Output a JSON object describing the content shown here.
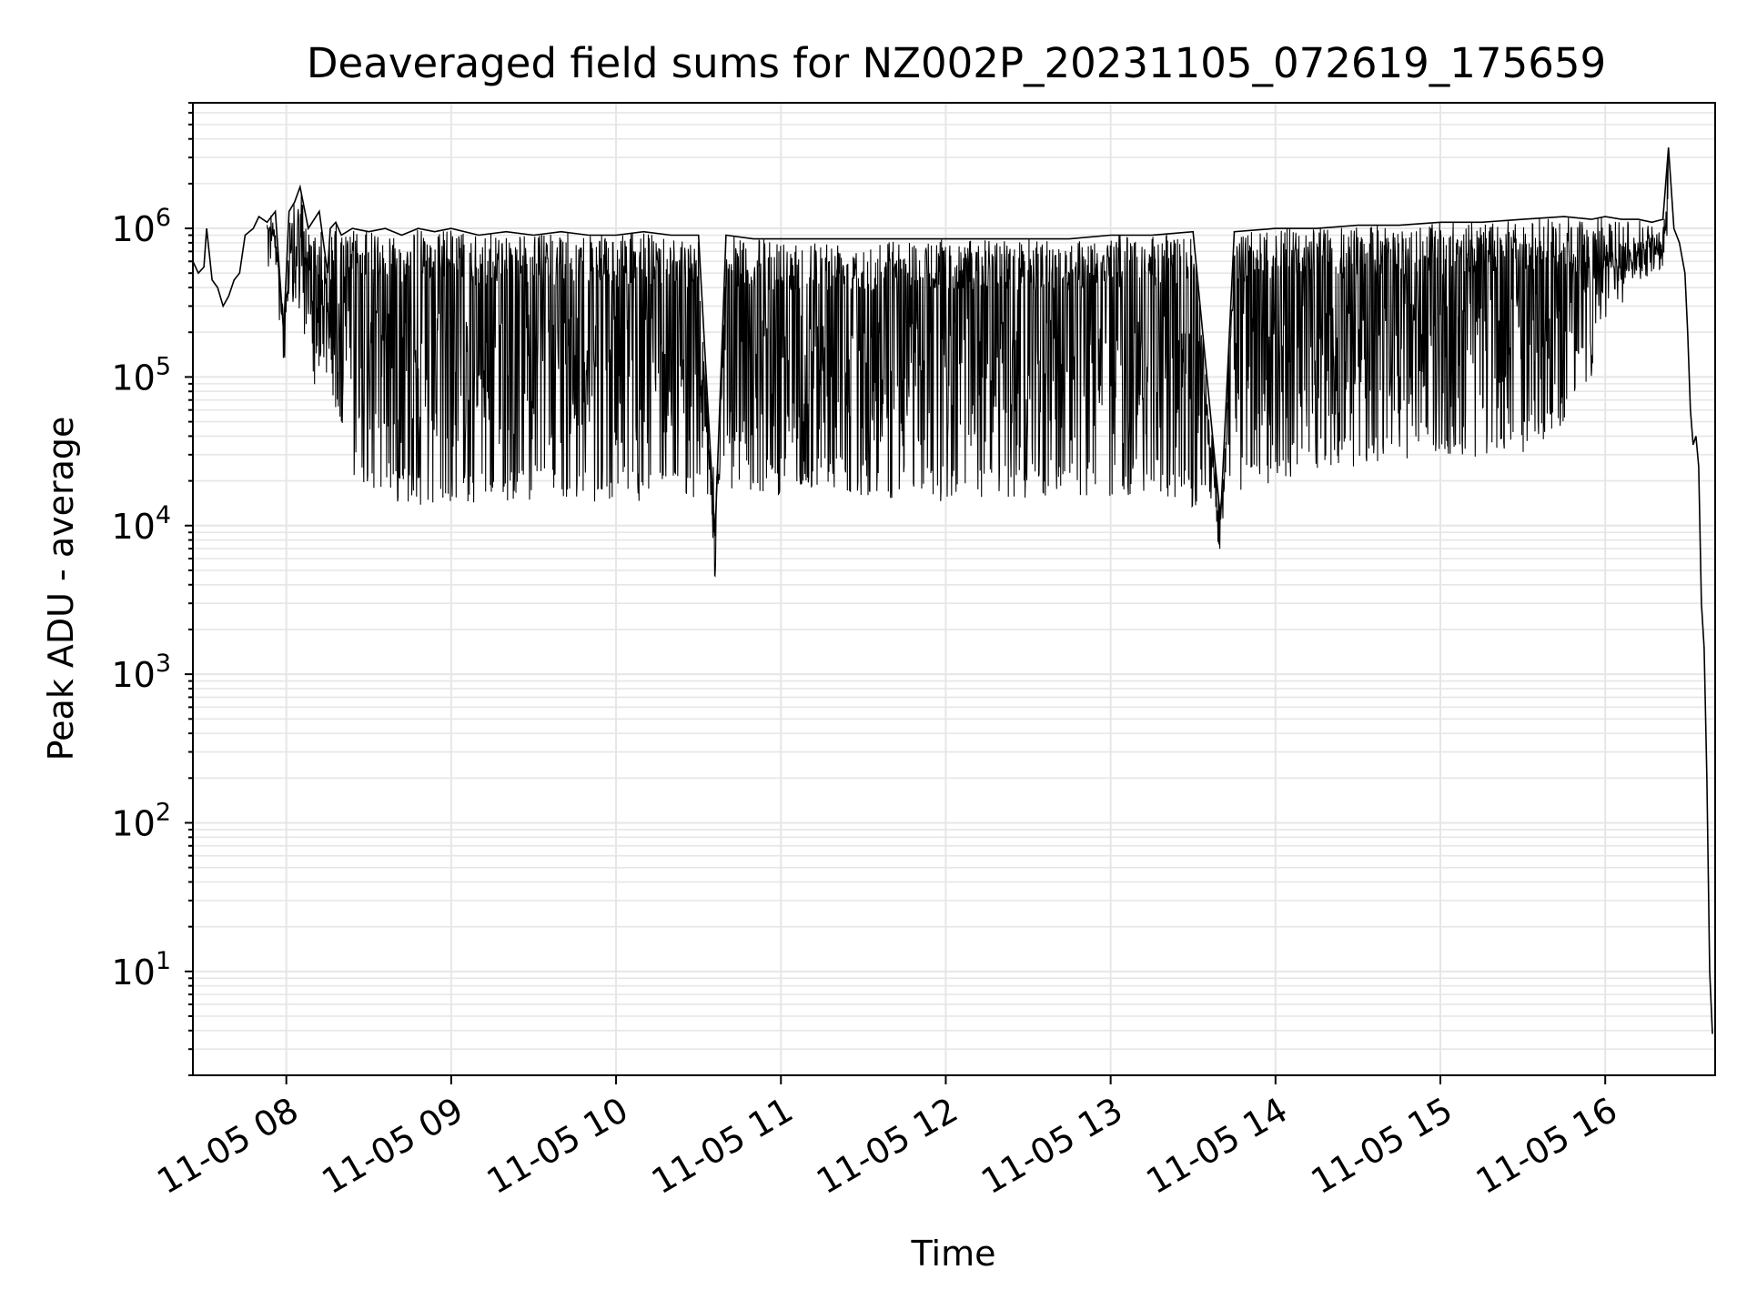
{
  "chart_data": {
    "type": "line",
    "title": "Deaveraged field sums for NZ002P_20231105_072619_175659",
    "xlabel": "Time",
    "ylabel": "Peak ADU - average",
    "yscale": "log",
    "grid": true,
    "line_color": "#000000",
    "grid_color": "#e6e6e6",
    "x_tick_labels": [
      "11-05 08",
      "11-05 09",
      "11-05 10",
      "11-05 11",
      "11-05 12",
      "11-05 13",
      "11-05 14",
      "11-05 15",
      "11-05 16"
    ],
    "y_tick_labels": [
      {
        "base": "10",
        "exp": "1"
      },
      {
        "base": "10",
        "exp": "2"
      },
      {
        "base": "10",
        "exp": "3"
      },
      {
        "base": "10",
        "exp": "4"
      },
      {
        "base": "10",
        "exp": "5"
      },
      {
        "base": "10",
        "exp": "6"
      }
    ],
    "xlim": [
      "2023-11-05 07:26",
      "2023-11-05 16:40"
    ],
    "ylim": [
      2,
      7000000
    ],
    "series": [
      {
        "values": [
          [
            "2023-11-05 07:26",
            600000
          ],
          [
            "2023-11-05 07:28",
            500000
          ],
          [
            "2023-11-05 07:30",
            550000
          ],
          [
            "2023-11-05 07:31",
            1000000
          ],
          [
            "2023-11-05 07:33",
            450000
          ],
          [
            "2023-11-05 07:35",
            400000
          ],
          [
            "2023-11-05 07:37",
            300000
          ],
          [
            "2023-11-05 07:39",
            350000
          ],
          [
            "2023-11-05 07:41",
            450000
          ],
          [
            "2023-11-05 07:43",
            500000
          ],
          [
            "2023-11-05 07:45",
            900000
          ],
          [
            "2023-11-05 07:48",
            1000000
          ],
          [
            "2023-11-05 07:50",
            1200000
          ],
          [
            "2023-11-05 07:53",
            1100000
          ],
          [
            "2023-11-05 07:56",
            1300000
          ],
          [
            "2023-11-05 07:59",
            200000
          ],
          [
            "2023-11-05 08:01",
            1300000
          ],
          [
            "2023-11-05 08:03",
            1500000
          ],
          [
            "2023-11-05 08:05",
            1900000
          ],
          [
            "2023-11-05 08:08",
            1000000
          ],
          [
            "2023-11-05 08:12",
            1300000
          ],
          [
            "2023-11-05 08:15",
            500000
          ],
          [
            "2023-11-05 08:16",
            1000000
          ],
          [
            "2023-11-05 08:18",
            1100000
          ],
          [
            "2023-11-05 08:20",
            900000
          ],
          [
            "2023-11-05 08:24",
            1000000
          ],
          [
            "2023-11-05 08:30",
            950000
          ],
          [
            "2023-11-05 08:36",
            1000000
          ],
          [
            "2023-11-05 08:42",
            900000
          ],
          [
            "2023-11-05 08:48",
            1000000
          ],
          [
            "2023-11-05 08:54",
            950000
          ],
          [
            "2023-11-05 09:00",
            1000000
          ],
          [
            "2023-11-05 09:10",
            900000
          ],
          [
            "2023-11-05 09:20",
            950000
          ],
          [
            "2023-11-05 09:30",
            900000
          ],
          [
            "2023-11-05 09:40",
            950000
          ],
          [
            "2023-11-05 09:50",
            900000
          ],
          [
            "2023-11-05 10:00",
            900000
          ],
          [
            "2023-11-05 10:10",
            950000
          ],
          [
            "2023-11-05 10:20",
            900000
          ],
          [
            "2023-11-05 10:30",
            900000
          ],
          [
            "2023-11-05 10:36",
            8500
          ],
          [
            "2023-11-05 10:40",
            900000
          ],
          [
            "2023-11-05 10:50",
            850000
          ],
          [
            "2023-11-05 11:00",
            850000
          ],
          [
            "2023-11-05 11:15",
            850000
          ],
          [
            "2023-11-05 11:30",
            850000
          ],
          [
            "2023-11-05 11:45",
            850000
          ],
          [
            "2023-11-05 12:00",
            850000
          ],
          [
            "2023-11-05 12:15",
            850000
          ],
          [
            "2023-11-05 12:30",
            850000
          ],
          [
            "2023-11-05 12:45",
            850000
          ],
          [
            "2023-11-05 13:00",
            900000
          ],
          [
            "2023-11-05 13:15",
            900000
          ],
          [
            "2023-11-05 13:30",
            950000
          ],
          [
            "2023-11-05 13:40",
            11000
          ],
          [
            "2023-11-05 13:45",
            950000
          ],
          [
            "2023-11-05 14:00",
            1000000
          ],
          [
            "2023-11-05 14:15",
            1000000
          ],
          [
            "2023-11-05 14:30",
            1050000
          ],
          [
            "2023-11-05 14:45",
            1050000
          ],
          [
            "2023-11-05 15:00",
            1100000
          ],
          [
            "2023-11-05 15:15",
            1100000
          ],
          [
            "2023-11-05 15:30",
            1150000
          ],
          [
            "2023-11-05 15:45",
            1200000
          ],
          [
            "2023-11-05 15:55",
            1150000
          ],
          [
            "2023-11-05 16:00",
            1200000
          ],
          [
            "2023-11-05 16:06",
            1150000
          ],
          [
            "2023-11-05 16:12",
            1150000
          ],
          [
            "2023-11-05 16:17",
            1100000
          ],
          [
            "2023-11-05 16:21",
            1150000
          ],
          [
            "2023-11-05 16:23",
            3500000
          ],
          [
            "2023-11-05 16:25",
            1000000
          ],
          [
            "2023-11-05 16:27",
            800000
          ],
          [
            "2023-11-05 16:29",
            500000
          ],
          [
            "2023-11-05 16:30",
            200000
          ],
          [
            "2023-11-05 16:31",
            60000
          ],
          [
            "2023-11-05 16:32",
            35000
          ],
          [
            "2023-11-05 16:33",
            40000
          ],
          [
            "2023-11-05 16:34",
            25000
          ],
          [
            "2023-11-05 16:35",
            3000
          ],
          [
            "2023-11-05 16:36",
            1500
          ],
          [
            "2023-11-05 16:37",
            200
          ],
          [
            "2023-11-05 16:38",
            10
          ],
          [
            "2023-11-05 16:39",
            3.8
          ]
        ],
        "lower_envelope": [
          [
            "2023-11-05 07:53",
            1000000
          ],
          [
            "2023-11-05 08:00",
            250000
          ],
          [
            "2023-11-05 08:06",
            180000
          ],
          [
            "2023-11-05 08:10",
            90000
          ],
          [
            "2023-11-05 08:15",
            60000
          ],
          [
            "2023-11-05 08:20",
            40000
          ],
          [
            "2023-11-05 08:25",
            20000
          ],
          [
            "2023-11-05 08:35",
            15000
          ],
          [
            "2023-11-05 08:45",
            14000
          ],
          [
            "2023-11-05 09:00",
            13000
          ],
          [
            "2023-11-05 09:15",
            14000
          ],
          [
            "2023-11-05 09:30",
            15000
          ],
          [
            "2023-11-05 09:45",
            14000
          ],
          [
            "2023-11-05 10:00",
            15000
          ],
          [
            "2023-11-05 10:15",
            13000
          ],
          [
            "2023-11-05 10:30",
            15000
          ],
          [
            "2023-11-05 10:45",
            16000
          ],
          [
            "2023-11-05 11:00",
            16000
          ],
          [
            "2023-11-05 11:15",
            17000
          ],
          [
            "2023-11-05 11:30",
            16000
          ],
          [
            "2023-11-05 11:45",
            15000
          ],
          [
            "2023-11-05 12:00",
            14000
          ],
          [
            "2023-11-05 12:15",
            14000
          ],
          [
            "2023-11-05 12:30",
            15000
          ],
          [
            "2023-11-05 12:45",
            16000
          ],
          [
            "2023-11-05 13:00",
            15000
          ],
          [
            "2023-11-05 13:15",
            17000
          ],
          [
            "2023-11-05 13:30",
            13000
          ],
          [
            "2023-11-05 13:45",
            16000
          ],
          [
            "2023-11-05 14:00",
            20000
          ],
          [
            "2023-11-05 14:15",
            22000
          ],
          [
            "2023-11-05 14:30",
            25000
          ],
          [
            "2023-11-05 14:45",
            27000
          ],
          [
            "2023-11-05 15:00",
            30000
          ],
          [
            "2023-11-05 15:15",
            28000
          ],
          [
            "2023-11-05 15:30",
            30000
          ],
          [
            "2023-11-05 15:40",
            35000
          ],
          [
            "2023-11-05 15:45",
            50000
          ],
          [
            "2023-11-05 15:50",
            80000
          ],
          [
            "2023-11-05 15:55",
            100000
          ],
          [
            "2023-11-05 16:00",
            250000
          ],
          [
            "2023-11-05 16:05",
            300000
          ],
          [
            "2023-11-05 16:10",
            350000
          ],
          [
            "2023-11-05 16:15",
            450000
          ],
          [
            "2023-11-05 16:20",
            600000
          ],
          [
            "2023-11-05 16:23",
            800000
          ]
        ]
      }
    ]
  }
}
